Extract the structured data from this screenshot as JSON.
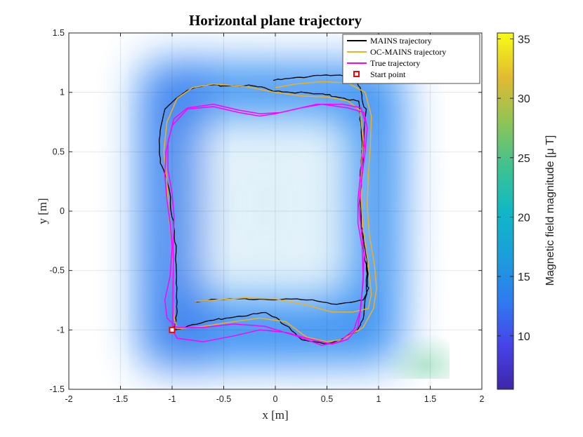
{
  "chart_data": {
    "type": "line",
    "title": "Horizontal plane trajectory",
    "xlabel": "x [m]",
    "ylabel": "y [m]",
    "xlim": [
      -2,
      2
    ],
    "ylim": [
      -1.5,
      1.5
    ],
    "x_ticks": [
      "-2",
      "-1.5",
      "-1",
      "-0.5",
      "0",
      "0.5",
      "1",
      "1.5",
      "2"
    ],
    "y_ticks": [
      "1.5",
      "1",
      "0.5",
      "0",
      "-0.5",
      "-1",
      "-1.5"
    ],
    "x_tick_values": [
      -2,
      -1.5,
      -1,
      -0.5,
      0,
      0.5,
      1,
      1.5,
      2
    ],
    "y_tick_values": [
      1.5,
      1,
      0.5,
      0,
      -0.5,
      -1,
      -1.5
    ],
    "grid": true,
    "legend_position": "top-right",
    "colorbar": {
      "label": "Magnetic field magnitude [μ T]",
      "range": [
        5.5,
        35.5
      ],
      "ticks": [
        "10",
        "15",
        "20",
        "25",
        "30",
        "35"
      ],
      "tick_values": [
        10,
        15,
        20,
        25,
        30,
        35
      ],
      "colormap": "parula"
    },
    "background": {
      "type": "heatmap",
      "description_values_uT": {
        "edges_min": 9,
        "center": 17,
        "bottom_right_corner": 22
      }
    },
    "series": [
      {
        "name": "MAINS trajectory",
        "color": "#000000",
        "points": [
          [
            -0.02,
            1.1
          ],
          [
            0.2,
            1.12
          ],
          [
            0.45,
            1.15
          ],
          [
            0.7,
            1.13
          ],
          [
            0.83,
            1.05
          ],
          [
            0.87,
            0.85
          ],
          [
            0.85,
            0.6
          ],
          [
            0.83,
            0.35
          ],
          [
            0.82,
            0.1
          ],
          [
            0.84,
            -0.15
          ],
          [
            0.88,
            -0.45
          ],
          [
            0.88,
            -0.7
          ],
          [
            0.86,
            -0.9
          ],
          [
            0.78,
            -1.02
          ],
          [
            0.65,
            -1.07
          ],
          [
            0.5,
            -1.12
          ],
          [
            0.3,
            -1.1
          ],
          [
            0.1,
            -0.95
          ],
          [
            -0.1,
            -0.86
          ],
          [
            -0.35,
            -0.88
          ],
          [
            -0.6,
            -0.92
          ],
          [
            -0.85,
            -0.97
          ],
          [
            -0.98,
            -1.0
          ],
          [
            -0.96,
            -0.85
          ],
          [
            -0.95,
            -0.6
          ],
          [
            -0.97,
            -0.3
          ],
          [
            -1.0,
            -0.05
          ],
          [
            -1.02,
            0.2
          ],
          [
            -1.12,
            0.4
          ],
          [
            -1.12,
            0.6
          ],
          [
            -1.08,
            0.85
          ],
          [
            -0.96,
            0.95
          ],
          [
            -0.85,
            1.02
          ],
          [
            -0.65,
            1.06
          ],
          [
            -0.4,
            1.06
          ],
          [
            -0.2,
            1.05
          ],
          [
            -0.05,
            1.02
          ],
          [
            0.2,
            1.0
          ],
          [
            0.45,
            0.98
          ],
          [
            0.65,
            0.96
          ],
          [
            0.8,
            0.92
          ],
          [
            0.83,
            0.75
          ],
          [
            0.85,
            0.5
          ],
          [
            0.83,
            0.25
          ],
          [
            0.83,
            0.0
          ],
          [
            0.85,
            -0.25
          ],
          [
            0.9,
            -0.5
          ],
          [
            0.9,
            -0.65
          ],
          [
            0.85,
            -0.75
          ],
          [
            0.6,
            -0.78
          ],
          [
            0.3,
            -0.75
          ],
          [
            0.0,
            -0.74
          ],
          [
            -0.3,
            -0.74
          ],
          [
            -0.6,
            -0.75
          ],
          [
            -0.78,
            -0.76
          ]
        ]
      },
      {
        "name": "OC-MAINS trajectory",
        "color": "#edb120",
        "points": [
          [
            0.0,
            1.04
          ],
          [
            0.2,
            1.07
          ],
          [
            0.45,
            1.09
          ],
          [
            0.7,
            1.08
          ],
          [
            0.87,
            1.0
          ],
          [
            0.93,
            0.8
          ],
          [
            0.92,
            0.55
          ],
          [
            0.9,
            0.3
          ],
          [
            0.89,
            0.05
          ],
          [
            0.91,
            -0.2
          ],
          [
            0.96,
            -0.45
          ],
          [
            0.98,
            -0.65
          ],
          [
            0.95,
            -0.82
          ],
          [
            0.85,
            -0.98
          ],
          [
            0.65,
            -1.08
          ],
          [
            0.5,
            -1.1
          ],
          [
            0.3,
            -1.06
          ],
          [
            0.1,
            -0.93
          ],
          [
            -0.15,
            -0.9
          ],
          [
            -0.4,
            -0.93
          ],
          [
            -0.7,
            -0.97
          ],
          [
            -0.95,
            -0.99
          ],
          [
            -0.98,
            -0.9
          ],
          [
            -0.99,
            -0.6
          ],
          [
            -1.0,
            -0.3
          ],
          [
            -1.03,
            -0.05
          ],
          [
            -1.05,
            0.25
          ],
          [
            -1.08,
            0.5
          ],
          [
            -1.05,
            0.75
          ],
          [
            -0.95,
            0.95
          ],
          [
            -0.8,
            1.04
          ],
          [
            -0.6,
            1.07
          ],
          [
            -0.3,
            1.05
          ],
          [
            0.0,
            1.0
          ],
          [
            0.25,
            0.97
          ],
          [
            0.5,
            0.96
          ],
          [
            0.7,
            0.93
          ],
          [
            0.82,
            0.85
          ],
          [
            0.85,
            0.6
          ],
          [
            0.83,
            0.35
          ],
          [
            0.83,
            0.1
          ],
          [
            0.85,
            -0.15
          ],
          [
            0.9,
            -0.45
          ],
          [
            0.93,
            -0.7
          ],
          [
            0.9,
            -0.82
          ],
          [
            0.75,
            -0.85
          ],
          [
            0.55,
            -0.85
          ],
          [
            0.3,
            -0.79
          ],
          [
            0.0,
            -0.74
          ],
          [
            -0.3,
            -0.73
          ],
          [
            -0.6,
            -0.75
          ],
          [
            -0.78,
            -0.76
          ]
        ]
      },
      {
        "name": "True trajectory",
        "color": "#ff00ff",
        "points": [
          [
            -1.0,
            -1.0
          ],
          [
            -0.95,
            -1.07
          ],
          [
            -0.7,
            -1.1
          ],
          [
            -0.4,
            -1.05
          ],
          [
            -0.15,
            -1.0
          ],
          [
            0.1,
            -1.02
          ],
          [
            0.35,
            -1.08
          ],
          [
            0.55,
            -1.12
          ],
          [
            0.7,
            -1.08
          ],
          [
            0.8,
            -0.98
          ],
          [
            0.83,
            -0.8
          ],
          [
            0.85,
            -0.55
          ],
          [
            0.84,
            -0.3
          ],
          [
            0.8,
            -0.1
          ],
          [
            0.8,
            0.1
          ],
          [
            0.83,
            0.35
          ],
          [
            0.86,
            0.55
          ],
          [
            0.87,
            0.75
          ],
          [
            0.83,
            0.87
          ],
          [
            0.65,
            0.9
          ],
          [
            0.4,
            0.9
          ],
          [
            0.2,
            0.86
          ],
          [
            0.0,
            0.82
          ],
          [
            -0.15,
            0.8
          ],
          [
            -0.35,
            0.83
          ],
          [
            -0.6,
            0.88
          ],
          [
            -0.85,
            0.86
          ],
          [
            -1.0,
            0.72
          ],
          [
            -1.06,
            0.5
          ],
          [
            -1.07,
            0.3
          ],
          [
            -1.05,
            0.1
          ],
          [
            -1.02,
            -0.1
          ],
          [
            -1.0,
            -0.3
          ],
          [
            -1.02,
            -0.55
          ],
          [
            -1.07,
            -0.75
          ],
          [
            -1.05,
            -0.9
          ],
          [
            -0.95,
            -0.98
          ],
          [
            -0.7,
            -0.98
          ],
          [
            -0.4,
            -0.95
          ],
          [
            -0.1,
            -0.97
          ],
          [
            0.2,
            -1.05
          ],
          [
            0.45,
            -1.13
          ],
          [
            0.62,
            -1.1
          ],
          [
            0.76,
            -1.0
          ],
          [
            0.82,
            -0.85
          ],
          [
            0.85,
            -0.6
          ],
          [
            0.86,
            -0.35
          ],
          [
            0.83,
            -0.15
          ],
          [
            0.81,
            0.05
          ],
          [
            0.84,
            0.3
          ],
          [
            0.87,
            0.5
          ],
          [
            0.89,
            0.7
          ],
          [
            0.86,
            0.83
          ],
          [
            0.7,
            0.87
          ],
          [
            0.45,
            0.9
          ],
          [
            0.25,
            0.87
          ],
          [
            0.05,
            0.83
          ],
          [
            -0.15,
            0.82
          ],
          [
            -0.35,
            0.85
          ],
          [
            -0.6,
            0.9
          ],
          [
            -0.85,
            0.87
          ],
          [
            -0.98,
            0.78
          ],
          [
            -1.04,
            0.58
          ],
          [
            -1.04,
            0.35
          ],
          [
            -1.0,
            0.15
          ],
          [
            -0.98,
            -0.05
          ],
          [
            -0.99,
            -0.3
          ],
          [
            -0.99,
            -0.6
          ],
          [
            -0.99,
            -0.85
          ],
          [
            -1.0,
            -1.0
          ]
        ]
      },
      {
        "name": "Start point",
        "color": "#ff0000",
        "marker": "square",
        "points": [
          [
            -1.0,
            -1.0
          ]
        ]
      }
    ]
  }
}
